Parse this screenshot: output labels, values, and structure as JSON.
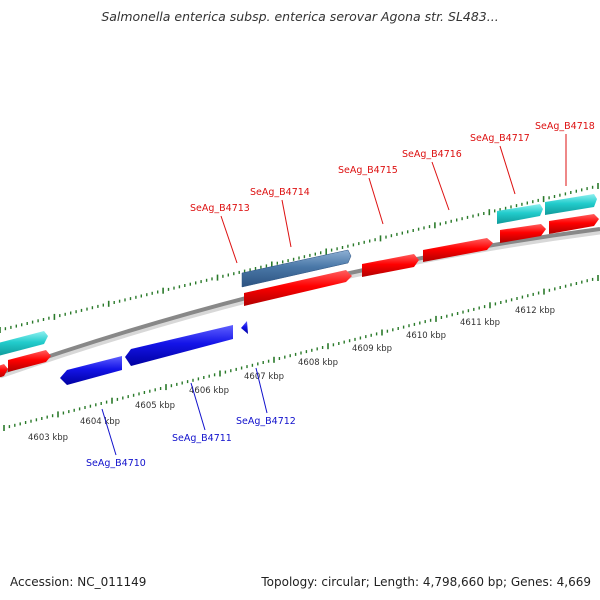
{
  "title": "Salmonella enterica subsp. enterica serovar Agona str. SL483...",
  "footer": {
    "accession": "Accession: NC_011149",
    "topology": "Topology: circular; Length: 4,798,660 bp; Genes: 4,669"
  },
  "colors": {
    "backbone": "#888888",
    "tick": "#2a7a2a",
    "forward_cds": "#ff0000",
    "reverse_cds": "#1010e0",
    "forward_gene": "#22cccc",
    "selected_gene": "#4a78a8",
    "forward_label": "#dd1111",
    "reverse_label": "#1111cc",
    "axis_label": "#333333"
  },
  "scale": {
    "unit": "kbp",
    "labels": [
      "4603 kbp",
      "4604 kbp",
      "4605 kbp",
      "4606 kbp",
      "4607 kbp",
      "4608 kbp",
      "4609 kbp",
      "4610 kbp",
      "4611 kbp",
      "4612 kbp"
    ]
  },
  "forward_genes": [
    {
      "label": "SeAg_B4713",
      "track": "selected"
    },
    {
      "label": "SeAg_B4714",
      "track": "cds"
    },
    {
      "label": "SeAg_B4715",
      "track": "cds"
    },
    {
      "label": "SeAg_B4716",
      "track": "cds"
    },
    {
      "label": "SeAg_B4717",
      "track": "gene"
    },
    {
      "label": "SeAg_B4718",
      "track": "gene"
    }
  ],
  "reverse_genes": [
    {
      "label": "SeAg_B4710"
    },
    {
      "label": "SeAg_B4711"
    },
    {
      "label": "SeAg_B4712"
    }
  ]
}
